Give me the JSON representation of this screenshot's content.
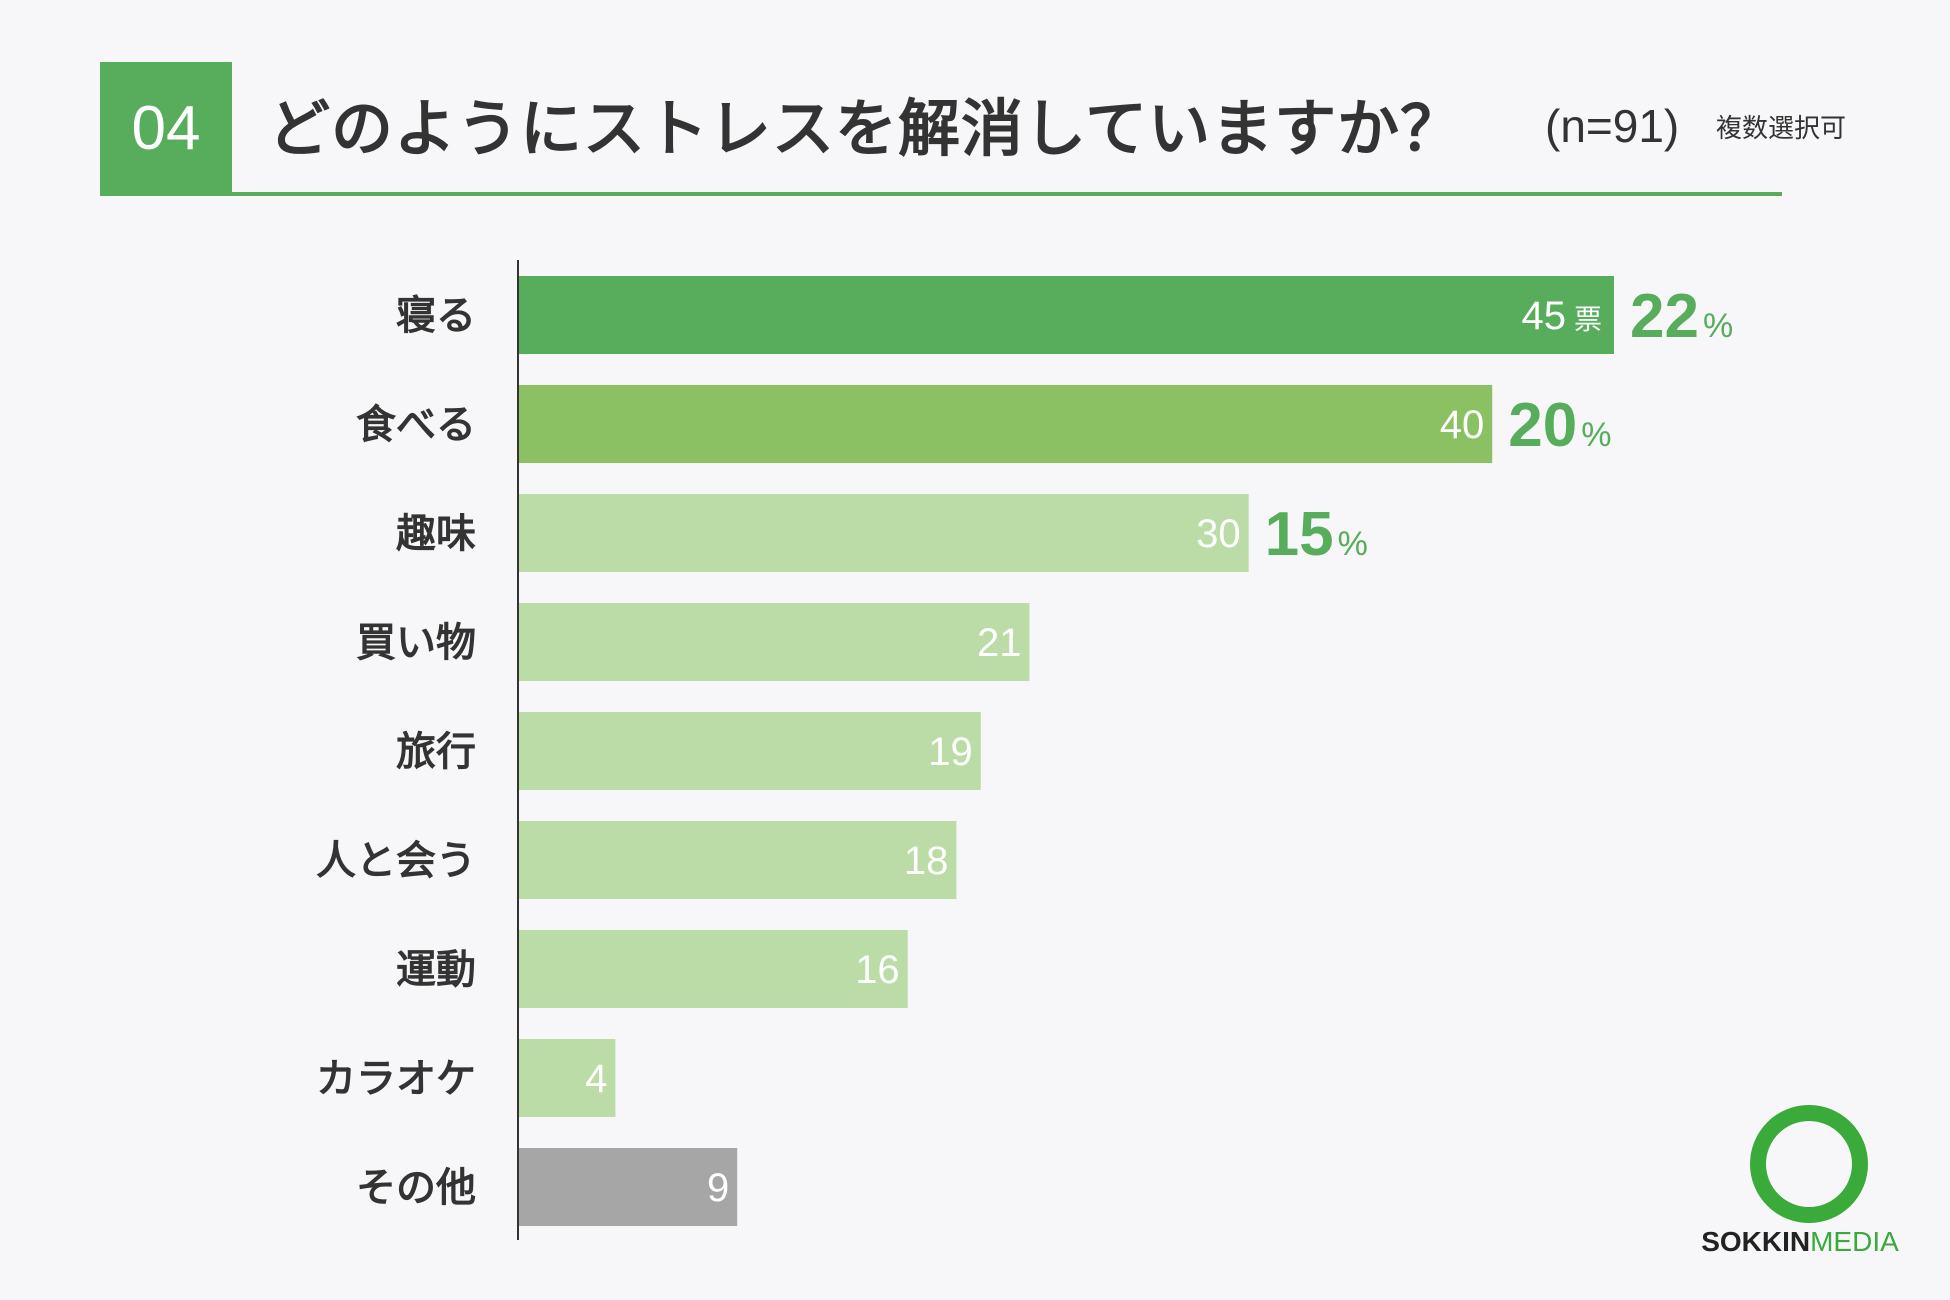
{
  "header": {
    "number": "04",
    "title": "どのようにストレスを解消していますか？",
    "sample": "(n=91)",
    "note": "複数選択可"
  },
  "chart_data": {
    "type": "bar",
    "orientation": "horizontal",
    "categories": [
      "寝る",
      "食べる",
      "趣味",
      "買い物",
      "旅行",
      "人と会う",
      "運動",
      "カラオケ",
      "その他"
    ],
    "values": [
      45,
      40,
      30,
      21,
      19,
      18,
      16,
      4,
      9
    ],
    "value_unit": "票",
    "percentages": [
      {
        "index": 0,
        "value": "22",
        "sign": "%"
      },
      {
        "index": 1,
        "value": "20",
        "sign": "%"
      },
      {
        "index": 2,
        "value": "15",
        "sign": "%"
      }
    ],
    "xlim": [
      0,
      45
    ],
    "grid": false,
    "colors": {
      "top1": "#57ad5c",
      "top2": "#8bc063",
      "default": "#bbdca6",
      "other": "#a6a6a6",
      "axis": "#333333"
    }
  },
  "logo": {
    "part1": "SOKKIN",
    "part2": "MEDIA"
  }
}
